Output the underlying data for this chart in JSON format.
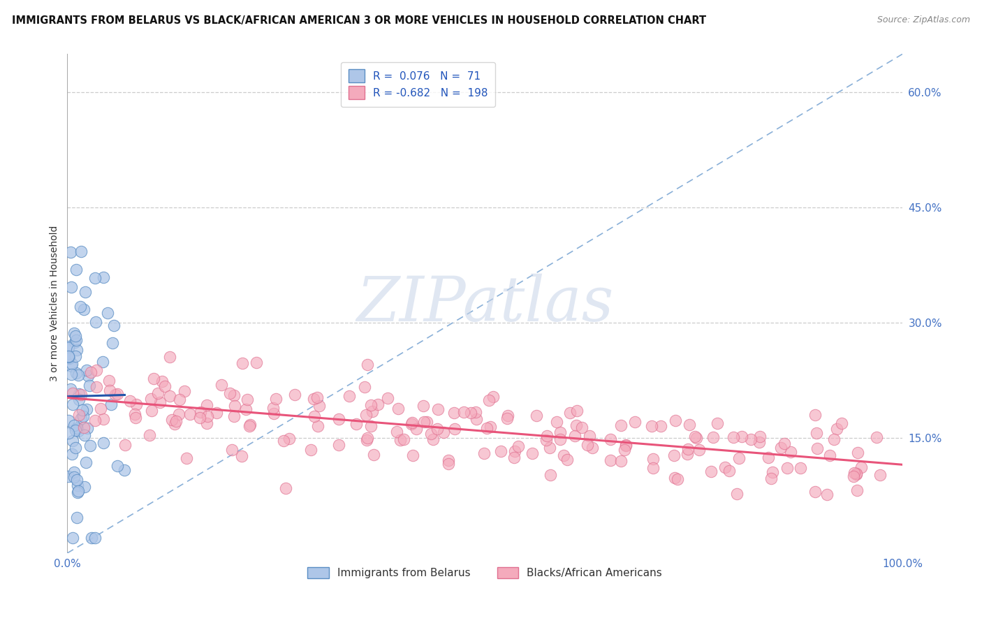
{
  "title": "IMMIGRANTS FROM BELARUS VS BLACK/AFRICAN AMERICAN 3 OR MORE VEHICLES IN HOUSEHOLD CORRELATION CHART",
  "source": "Source: ZipAtlas.com",
  "ylabel": "3 or more Vehicles in Household",
  "xlim": [
    0.0,
    1.0
  ],
  "ylim": [
    0.0,
    0.65
  ],
  "yticks": [
    0.15,
    0.3,
    0.45,
    0.6
  ],
  "xticks": [
    0.0,
    1.0
  ],
  "r_belarus": 0.076,
  "n_belarus": 71,
  "r_black": -0.682,
  "n_black": 198,
  "color_belarus_face": "#aec6e8",
  "color_belarus_edge": "#5b8ec4",
  "color_black_face": "#f4aabc",
  "color_black_edge": "#e07090",
  "color_trend_belarus": "#2255aa",
  "color_trend_black": "#e8547a",
  "color_ref_line": "#8ab0d8",
  "watermark_color": "#c8d4e8",
  "legend_label_belarus": "Immigrants from Belarus",
  "legend_label_black": "Blacks/African Americans",
  "background_color": "#ffffff",
  "right_tick_color": "#4472c4",
  "x_tick_color": "#4472c4",
  "legend_text_color": "#2255bb",
  "title_color": "#111111",
  "source_color": "#888888",
  "ylabel_color": "#333333"
}
